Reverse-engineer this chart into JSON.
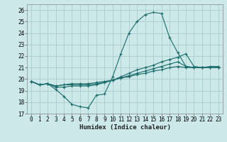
{
  "xlabel": "Humidex (Indice chaleur)",
  "bg_color": "#cce8e8",
  "grid_color": "#aacccc",
  "line_color": "#1a6b6b",
  "xlim": [
    -0.5,
    23.5
  ],
  "ylim": [
    17,
    26.5
  ],
  "yticks": [
    17,
    18,
    19,
    20,
    21,
    22,
    23,
    24,
    25,
    26
  ],
  "xticks": [
    0,
    1,
    2,
    3,
    4,
    5,
    6,
    7,
    8,
    9,
    10,
    11,
    12,
    13,
    14,
    15,
    16,
    17,
    18,
    19,
    20,
    21,
    22,
    23
  ],
  "lines": [
    {
      "x": [
        0,
        1,
        2,
        3,
        4,
        5,
        6,
        7,
        8,
        9,
        10,
        11,
        12,
        13,
        14,
        15,
        16,
        17,
        18,
        19,
        20,
        21,
        22,
        23
      ],
      "y": [
        19.8,
        19.5,
        19.6,
        19.1,
        18.5,
        17.8,
        17.6,
        17.5,
        18.6,
        18.7,
        20.2,
        22.2,
        24.0,
        25.0,
        25.6,
        25.8,
        25.7,
        23.6,
        22.3,
        21.1,
        21.0,
        21.0,
        21.1,
        21.1
      ]
    },
    {
      "x": [
        0,
        1,
        2,
        3,
        4,
        5,
        6,
        7,
        8,
        9,
        10,
        11,
        12,
        13,
        14,
        15,
        16,
        17,
        18,
        19,
        20,
        21,
        22,
        23
      ],
      "y": [
        19.8,
        19.5,
        19.6,
        19.3,
        19.3,
        19.4,
        19.4,
        19.4,
        19.5,
        19.7,
        19.9,
        20.2,
        20.5,
        20.8,
        21.0,
        21.2,
        21.5,
        21.7,
        21.9,
        22.2,
        21.1,
        21.0,
        21.0,
        21.0
      ]
    },
    {
      "x": [
        0,
        1,
        2,
        3,
        4,
        5,
        6,
        7,
        8,
        9,
        10,
        11,
        12,
        13,
        14,
        15,
        16,
        17,
        18,
        19,
        20,
        21,
        22,
        23
      ],
      "y": [
        19.8,
        19.5,
        19.6,
        19.4,
        19.5,
        19.5,
        19.5,
        19.5,
        19.6,
        19.7,
        19.9,
        20.1,
        20.3,
        20.5,
        20.7,
        20.9,
        21.1,
        21.3,
        21.5,
        21.1,
        21.0,
        21.0,
        21.0,
        21.0
      ]
    },
    {
      "x": [
        0,
        1,
        2,
        3,
        4,
        5,
        6,
        7,
        8,
        9,
        10,
        11,
        12,
        13,
        14,
        15,
        16,
        17,
        18,
        19,
        20,
        21,
        22,
        23
      ],
      "y": [
        19.8,
        19.5,
        19.6,
        19.4,
        19.5,
        19.6,
        19.6,
        19.6,
        19.7,
        19.8,
        19.9,
        20.1,
        20.2,
        20.4,
        20.5,
        20.7,
        20.8,
        21.0,
        21.1,
        21.0,
        21.0,
        21.0,
        21.0,
        21.0
      ]
    }
  ],
  "tick_fontsize": 5.5,
  "xlabel_fontsize": 6.5
}
